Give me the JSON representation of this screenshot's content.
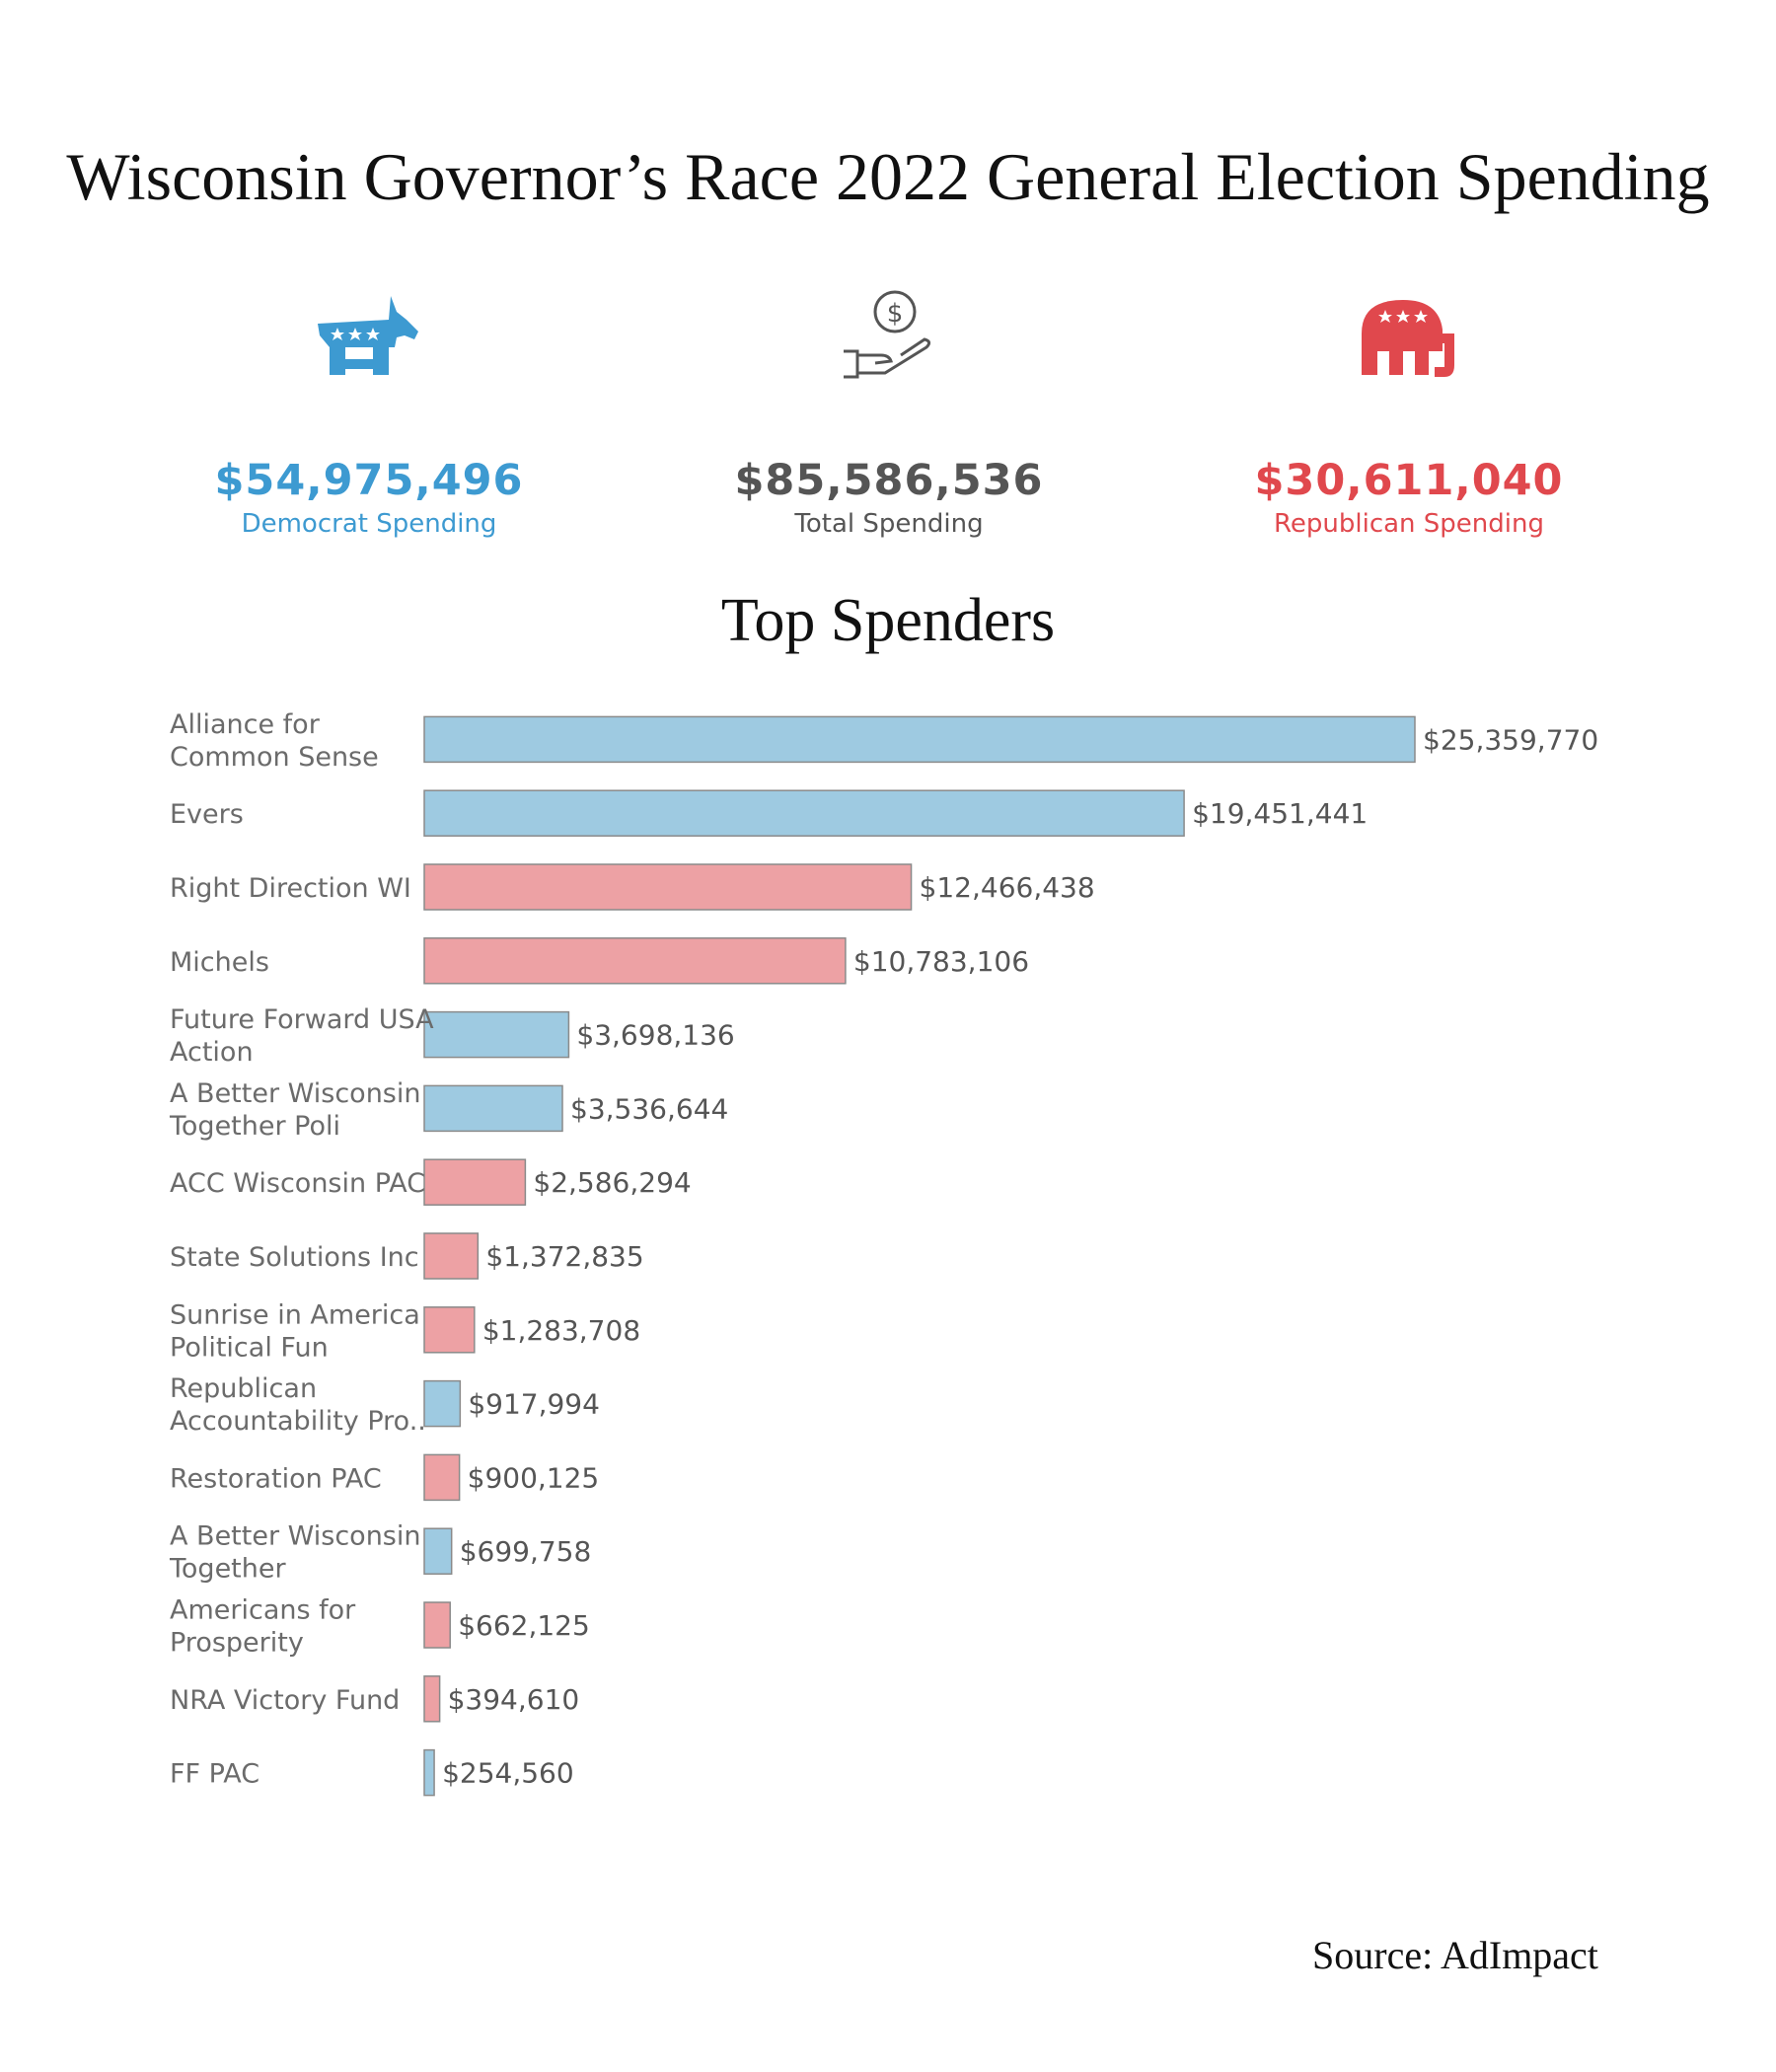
{
  "title": "Wisconsin Governor’s Race 2022 General Election Spending",
  "colors": {
    "democrat": "#3d9ad1",
    "republican": "#e0484d",
    "total": "#555555",
    "bar_democrat": "#9ecae1",
    "bar_republican": "#eda1a4",
    "bar_stroke": "#8a8a8a",
    "label": "#6b6b6b"
  },
  "summary": {
    "democrat": {
      "amount": "$54,975,496",
      "label": "Democrat Spending",
      "icon": "donkey-icon"
    },
    "total": {
      "amount": "$85,586,536",
      "label": "Total Spending",
      "icon": "hand-coin-icon"
    },
    "republican": {
      "amount": "$30,611,040",
      "label": "Republican Spending",
      "icon": "elephant-icon"
    }
  },
  "subtitle": "Top Spenders",
  "source": "Source: AdImpact",
  "chart_data": {
    "type": "bar",
    "orientation": "horizontal",
    "title": "Top Spenders",
    "categories": [
      [
        "Alliance for",
        "Common Sense"
      ],
      [
        "Evers"
      ],
      [
        "Right Direction WI"
      ],
      [
        "Michels"
      ],
      [
        "Future Forward USA",
        "Action"
      ],
      [
        "A Better Wisconsin",
        "Together Poli"
      ],
      [
        "ACC Wisconsin PAC"
      ],
      [
        "State Solutions Inc"
      ],
      [
        "Sunrise in America",
        "Political Fun"
      ],
      [
        "Republican",
        "Accountability Pro.."
      ],
      [
        "Restoration PAC"
      ],
      [
        "A Better Wisconsin",
        "Together"
      ],
      [
        "Americans for",
        "Prosperity"
      ],
      [
        "NRA Victory Fund"
      ],
      [
        "FF PAC"
      ]
    ],
    "values": [
      25359770,
      19451441,
      12466438,
      10783106,
      3698136,
      3536644,
      2586294,
      1372835,
      1283708,
      917994,
      900125,
      699758,
      662125,
      394610,
      254560
    ],
    "value_labels": [
      "$25,359,770",
      "$19,451,441",
      "$12,466,438",
      "$10,783,106",
      "$3,698,136",
      "$3,536,644",
      "$2,586,294",
      "$1,372,835",
      "$1,283,708",
      "$917,994",
      "$900,125",
      "$699,758",
      "$662,125",
      "$394,610",
      "$254,560"
    ],
    "party": [
      "democrat",
      "democrat",
      "republican",
      "republican",
      "democrat",
      "democrat",
      "republican",
      "republican",
      "republican",
      "democrat",
      "republican",
      "democrat",
      "republican",
      "republican",
      "democrat"
    ],
    "xlim": [
      0,
      25359770
    ],
    "grid": false
  }
}
